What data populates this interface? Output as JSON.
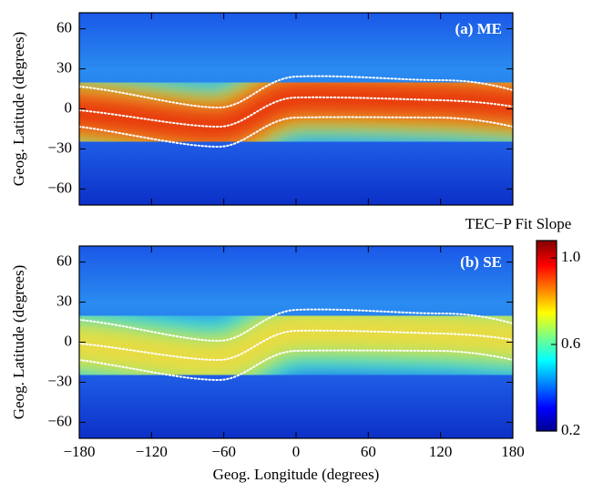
{
  "chart_data": [
    {
      "type": "heatmap",
      "panel_label": "(a) ME",
      "ylabel": "Geog. Latitude (degrees)",
      "xlim": [
        -180,
        180
      ],
      "ylim": [
        -72,
        72
      ],
      "xticks": [
        -180,
        -120,
        -60,
        0,
        60,
        120,
        180
      ],
      "yticks": [
        {
          "value": -60,
          "label": "−60"
        },
        {
          "value": -30,
          "label": "−30"
        },
        0,
        30,
        60
      ]
    },
    {
      "type": "heatmap",
      "panel_label": "(b) SE",
      "ylabel": "Geog. Latitude (degrees)",
      "xlabel": "Geog. Longitude (degrees)",
      "xlim": [
        -180,
        180
      ],
      "ylim": [
        -72,
        72
      ],
      "xticks": [
        {
          "value": -180,
          "label": "−180"
        },
        {
          "value": -120,
          "label": "−120"
        },
        {
          "value": -60,
          "label": "−60"
        },
        0,
        60,
        120,
        180
      ],
      "yticks": [
        {
          "value": -60,
          "label": "−60"
        },
        {
          "value": -30,
          "label": "−30"
        },
        0,
        30,
        60
      ]
    },
    {
      "type": "colorbar",
      "title": "TEC−P Fit Slope",
      "clim": [
        0.2,
        1.08
      ],
      "cticks": [
        0.2,
        0.6,
        {
          "value": 1,
          "label": "1.0"
        }
      ]
    }
  ]
}
